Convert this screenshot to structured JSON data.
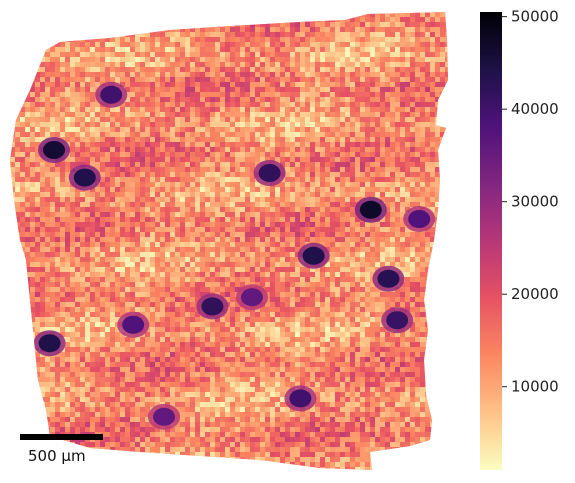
{
  "chart_data": {
    "type": "heatmap",
    "title": "",
    "xlabel": "",
    "ylabel": "",
    "colormap": "magma_r",
    "colormap_stops": [
      "#fcfdbf",
      "#fec287",
      "#fb8761",
      "#e75263",
      "#b73779",
      "#822681",
      "#4f127b",
      "#1d1147",
      "#000004"
    ],
    "colorbar": {
      "range": [
        1000,
        50500
      ],
      "ticks": [
        10000,
        20000,
        30000,
        40000,
        50000
      ],
      "tick_labels": [
        "10000",
        "20000",
        "30000",
        "40000",
        "50000"
      ],
      "placement": "right"
    },
    "scale_bar": {
      "label": "500 µm"
    },
    "background_intensity": 13000,
    "hotspots": [
      {
        "x": 0.1,
        "y": 0.3,
        "value": 46000
      },
      {
        "x": 0.82,
        "y": 0.43,
        "value": 47000
      },
      {
        "x": 0.17,
        "y": 0.36,
        "value": 44000
      },
      {
        "x": 0.28,
        "y": 0.68,
        "value": 38000
      },
      {
        "x": 0.46,
        "y": 0.64,
        "value": 42000
      },
      {
        "x": 0.55,
        "y": 0.62,
        "value": 36000
      },
      {
        "x": 0.69,
        "y": 0.53,
        "value": 44000
      },
      {
        "x": 0.59,
        "y": 0.35,
        "value": 42000
      },
      {
        "x": 0.86,
        "y": 0.58,
        "value": 43000
      },
      {
        "x": 0.23,
        "y": 0.18,
        "value": 40000
      },
      {
        "x": 0.66,
        "y": 0.84,
        "value": 40000
      },
      {
        "x": 0.88,
        "y": 0.67,
        "value": 41000
      },
      {
        "x": 0.93,
        "y": 0.45,
        "value": 38000
      },
      {
        "x": 0.35,
        "y": 0.88,
        "value": 36000
      },
      {
        "x": 0.09,
        "y": 0.72,
        "value": 44000
      }
    ]
  }
}
